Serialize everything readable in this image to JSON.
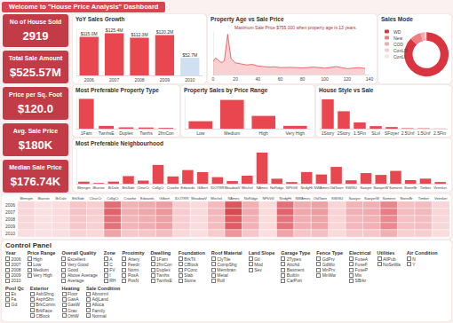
{
  "title": "Welcome to \"House Price Analysis\" Dashboard",
  "kpis": [
    {
      "label": "No of House Sold",
      "value": "2919"
    },
    {
      "label": "Total Sale Amount",
      "value": "$525.57M"
    },
    {
      "label": "Price per Sq. Foot",
      "value": "$120.0"
    },
    {
      "label": "Avg. Sale Price",
      "value": "$180K"
    },
    {
      "label": "Median Sale Price",
      "value": "$176.74K"
    }
  ],
  "chart_data": [
    {
      "type": "bar",
      "title": "YoY Sales Growth",
      "categories": [
        "2006",
        "2007",
        "2008",
        "2009",
        "2010"
      ],
      "values": [
        115.0,
        125.4,
        112.3,
        120.2,
        52.7
      ],
      "value_labels": [
        "$115.0M",
        "$125.4M",
        "$112.3M",
        "$120.2M",
        "$52.7M"
      ],
      "data_labels": true,
      "colors": [
        "#e8474f",
        "#e8474f",
        "#e8474f",
        "#e8474f",
        "#cfe0f3"
      ],
      "ylim": [
        0,
        140
      ],
      "tick_labels": "x",
      "grid": false
    },
    {
      "type": "line",
      "title": "Property Age vs Sale Price",
      "annotation": "Maximum Sale Price $755,000 when property age is 13 years.",
      "x": [
        0,
        2,
        4,
        6,
        8,
        10,
        13,
        16,
        20,
        25,
        30,
        35,
        40,
        45,
        50,
        55,
        60,
        70,
        80,
        90,
        100,
        110,
        120,
        130,
        136
      ],
      "values": [
        250000,
        310000,
        280000,
        240000,
        230000,
        260000,
        755000,
        300000,
        220000,
        200000,
        180000,
        190000,
        160000,
        150000,
        140000,
        145000,
        130000,
        135000,
        125000,
        140000,
        120000,
        150000,
        110000,
        130000,
        115000
      ],
      "color": "#e8474f",
      "xlim": [
        0,
        140
      ],
      "xticks": [
        0,
        20,
        40,
        60,
        80,
        100,
        120,
        140
      ],
      "ylim": [
        0,
        800000
      ],
      "tick_labels": "x",
      "grid": false
    },
    {
      "type": "pie",
      "title": "Sales Mode",
      "categories": [
        "WD",
        "New",
        "COD",
        "ConLD",
        "ConLI"
      ],
      "values": [
        2525,
        239,
        87,
        26,
        9
      ],
      "colors": [
        "#d9343f",
        "#ef7d83",
        "#f5a9ad",
        "#f9cdd0",
        "#fbe4e5"
      ],
      "legend": "left"
    },
    {
      "type": "bar",
      "title": "Most Preferable Property Type",
      "categories": [
        "1Fam",
        "TwnhsE",
        "Duplex",
        "Twnhs",
        "2fmCon"
      ],
      "values": [
        2425,
        227,
        109,
        96,
        62
      ],
      "color": "#e8474f",
      "ylim": [
        0,
        2600
      ],
      "tick_labels": "x",
      "grid": false
    },
    {
      "type": "bar",
      "title": "Property Sales by Price Range",
      "categories": [
        "Low",
        "Medium",
        "High",
        "Very High"
      ],
      "values": [
        420,
        1620,
        720,
        159
      ],
      "color": "#e8474f",
      "ylim": [
        0,
        1800
      ],
      "tick_labels": "x",
      "grid": false
    },
    {
      "type": "bar",
      "title": "House Style vs Sale",
      "categories": [
        "1Story",
        "2Story",
        "1.5Fin",
        "SLvl",
        "SFoyer",
        "2.5Unf",
        "1.5Unf",
        "2.5Fin"
      ],
      "values": [
        1471,
        872,
        314,
        128,
        83,
        24,
        19,
        8
      ],
      "color": "#e8474f",
      "ylim": [
        0,
        1600
      ],
      "tick_labels": "x",
      "grid": false
    },
    {
      "type": "bar",
      "title": "Most Preferable Neighbourhood",
      "categories": [
        "Blmngtn",
        "Blueste",
        "BrDale",
        "BrkSide",
        "ClearCr",
        "CollgCr",
        "Crawfor",
        "Edwards",
        "Gilbert",
        "IDOTRR",
        "MeadowV",
        "Mitchel",
        "NAmes",
        "NoRidge",
        "NPkVill",
        "NridgHt",
        "NWAmes",
        "OldTown",
        "SWISU",
        "Sawyer",
        "SawyerW",
        "Somerst",
        "StoneBr",
        "Timber",
        "Veenker"
      ],
      "values": [
        28,
        10,
        30,
        108,
        44,
        267,
        103,
        194,
        165,
        93,
        37,
        114,
        443,
        71,
        23,
        166,
        131,
        239,
        48,
        151,
        125,
        182,
        51,
        72,
        24
      ],
      "color": "#e8474f",
      "ylim": [
        0,
        480
      ],
      "tick_labels": "x",
      "grid": false
    },
    {
      "type": "heatmap",
      "categories": [
        "Blmngtn",
        "Blueste",
        "BrDale",
        "BrkSide",
        "ClearCr",
        "CollgCr",
        "Crawfor",
        "Edwards",
        "Gilbert",
        "IDOTRR",
        "MeadowV",
        "Mitchel",
        "NAmes",
        "NoRidge",
        "NPkVill",
        "NridgHt",
        "NWAmes",
        "OldTown",
        "SWISU",
        "Sawyer",
        "SawyerW",
        "Somerst",
        "StoneBr",
        "Timber",
        "Veenker"
      ],
      "y_categories": [
        "2006",
        "2007",
        "2008",
        "2009",
        "2010"
      ],
      "cells": [
        [
          1.2,
          0.3,
          0.7,
          3.0,
          2.0,
          11.7,
          4.8,
          5.5,
          6.9,
          2.0,
          0.8,
          4.0,
          14.1,
          5.1,
          0.7,
          11.5,
          5.5,
          6.6,
          1.4,
          4.6,
          5.1,
          9.2,
          3.5,
          3.9,
          1.3
        ],
        [
          1.3,
          0.3,
          0.8,
          3.2,
          2.2,
          12.8,
          5.2,
          6.0,
          7.5,
          2.2,
          0.8,
          4.4,
          15.4,
          5.6,
          0.8,
          12.6,
          6.0,
          7.2,
          1.6,
          5.0,
          5.5,
          10.1,
          3.8,
          4.2,
          1.4
        ],
        [
          1.2,
          0.3,
          0.7,
          2.8,
          1.9,
          11.2,
          4.5,
          5.3,
          6.6,
          2.0,
          0.7,
          3.8,
          13.5,
          4.9,
          0.7,
          11.0,
          5.2,
          6.3,
          1.4,
          4.3,
          4.9,
          8.8,
          3.3,
          3.7,
          1.2
        ],
        [
          1.2,
          0.3,
          0.7,
          2.8,
          1.9,
          11.2,
          4.5,
          5.3,
          6.6,
          2.0,
          0.7,
          3.8,
          13.5,
          4.9,
          0.7,
          11.0,
          5.2,
          6.3,
          1.4,
          4.3,
          4.9,
          8.8,
          3.3,
          3.7,
          1.2
        ],
        [
          0.6,
          0.2,
          0.4,
          1.6,
          1.1,
          6.4,
          2.6,
          3.0,
          3.8,
          1.1,
          0.4,
          2.2,
          7.7,
          2.8,
          0.4,
          6.3,
          3.0,
          3.6,
          0.8,
          2.5,
          2.8,
          5.0,
          1.9,
          2.1,
          0.7
        ]
      ],
      "color_range": [
        0,
        16
      ],
      "colors": [
        "#fbe3e4",
        "#d9434c"
      ]
    }
  ],
  "control_panel": {
    "title": "Control Panel",
    "slicers": [
      {
        "title": "Year",
        "options": [
          "2006",
          "2007",
          "2008",
          "2009",
          "2010"
        ]
      },
      {
        "title": "Price Range",
        "options": [
          "High",
          "Low",
          "Medium",
          "Very High"
        ]
      },
      {
        "title": "Overall Quality",
        "options": [
          "Excellent",
          "Very Good",
          "Good",
          "Above Average",
          "Average"
        ]
      },
      {
        "title": "Zone",
        "options": [
          "A",
          "C",
          "FV",
          "I",
          "RH"
        ]
      },
      {
        "title": "Proximity",
        "options": [
          "Artery",
          "Feedr",
          "Norm",
          "PosA",
          "PosN"
        ]
      },
      {
        "title": "Dwelling",
        "options": [
          "1Fam",
          "2fmCon",
          "Duplex",
          "Twnhs",
          "TwnhsE"
        ]
      },
      {
        "title": "Foundation",
        "options": [
          "BrkTil",
          "CBlock",
          "PConc",
          "Slab",
          "Stone"
        ]
      },
      {
        "title": "Roof Material",
        "options": [
          "ClyTile",
          "CompShg",
          "Membran",
          "Metal",
          "Roll"
        ]
      },
      {
        "title": "Land Slope",
        "options": [
          "Gtl",
          "Mod",
          "Sev"
        ]
      },
      {
        "title": "Garage Type",
        "options": [
          "2Types",
          "Attchd",
          "Basment",
          "BuiltIn",
          "CarPort"
        ]
      },
      {
        "title": "Fence Type",
        "options": [
          "GdPrv",
          "GdWo",
          "MnPrv",
          "MnWw"
        ]
      },
      {
        "title": "Electrical",
        "options": [
          "FuseA",
          "FuseF",
          "FuseP",
          "Mix",
          "SBrkr"
        ]
      },
      {
        "title": "Utilities",
        "options": [
          "AllPub",
          "NoSeWa"
        ]
      },
      {
        "title": "Air Condition",
        "options": [
          "N",
          "Y"
        ]
      },
      {
        "title": "Pool Qc",
        "options": [
          "Ex",
          "Fa",
          "Gd"
        ]
      },
      {
        "title": "Exterior",
        "options": [
          "AsbShng",
          "AsphShn",
          "BrkComm",
          "BrkFace",
          "CBlock"
        ]
      },
      {
        "title": "Heating",
        "options": [
          "Floor",
          "GasA",
          "GasW",
          "Grav",
          "OthW"
        ]
      },
      {
        "title": "Sale Condition",
        "options": [
          "Abnorml",
          "AdjLand",
          "Alloca",
          "Family",
          "Normal"
        ]
      }
    ]
  }
}
